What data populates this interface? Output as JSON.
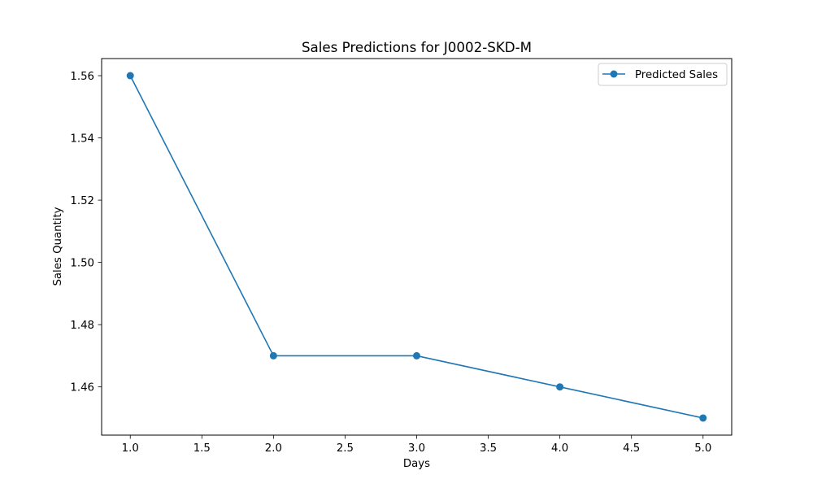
{
  "chart_data": {
    "type": "line",
    "title": "Sales Predictions for J0002-SKD-M",
    "xlabel": "Days",
    "ylabel": "Sales Quantity",
    "xlim": [
      0.8,
      5.2
    ],
    "ylim": [
      1.4445,
      1.5655
    ],
    "xticks": [
      1.0,
      1.5,
      2.0,
      2.5,
      3.0,
      3.5,
      4.0,
      4.5,
      5.0
    ],
    "xtick_labels": [
      "1.0",
      "1.5",
      "2.0",
      "2.5",
      "3.0",
      "3.5",
      "4.0",
      "4.5",
      "5.0"
    ],
    "yticks": [
      1.46,
      1.48,
      1.5,
      1.52,
      1.54,
      1.56
    ],
    "ytick_labels": [
      "1.46",
      "1.48",
      "1.50",
      "1.52",
      "1.54",
      "1.56"
    ],
    "grid": false,
    "legend_position": "upper-right",
    "series": [
      {
        "name": "Predicted Sales",
        "color": "#1f77b4",
        "marker": "circle",
        "x": [
          1,
          2,
          3,
          4,
          5
        ],
        "y": [
          1.56,
          1.47,
          1.47,
          1.46,
          1.45
        ]
      }
    ]
  }
}
